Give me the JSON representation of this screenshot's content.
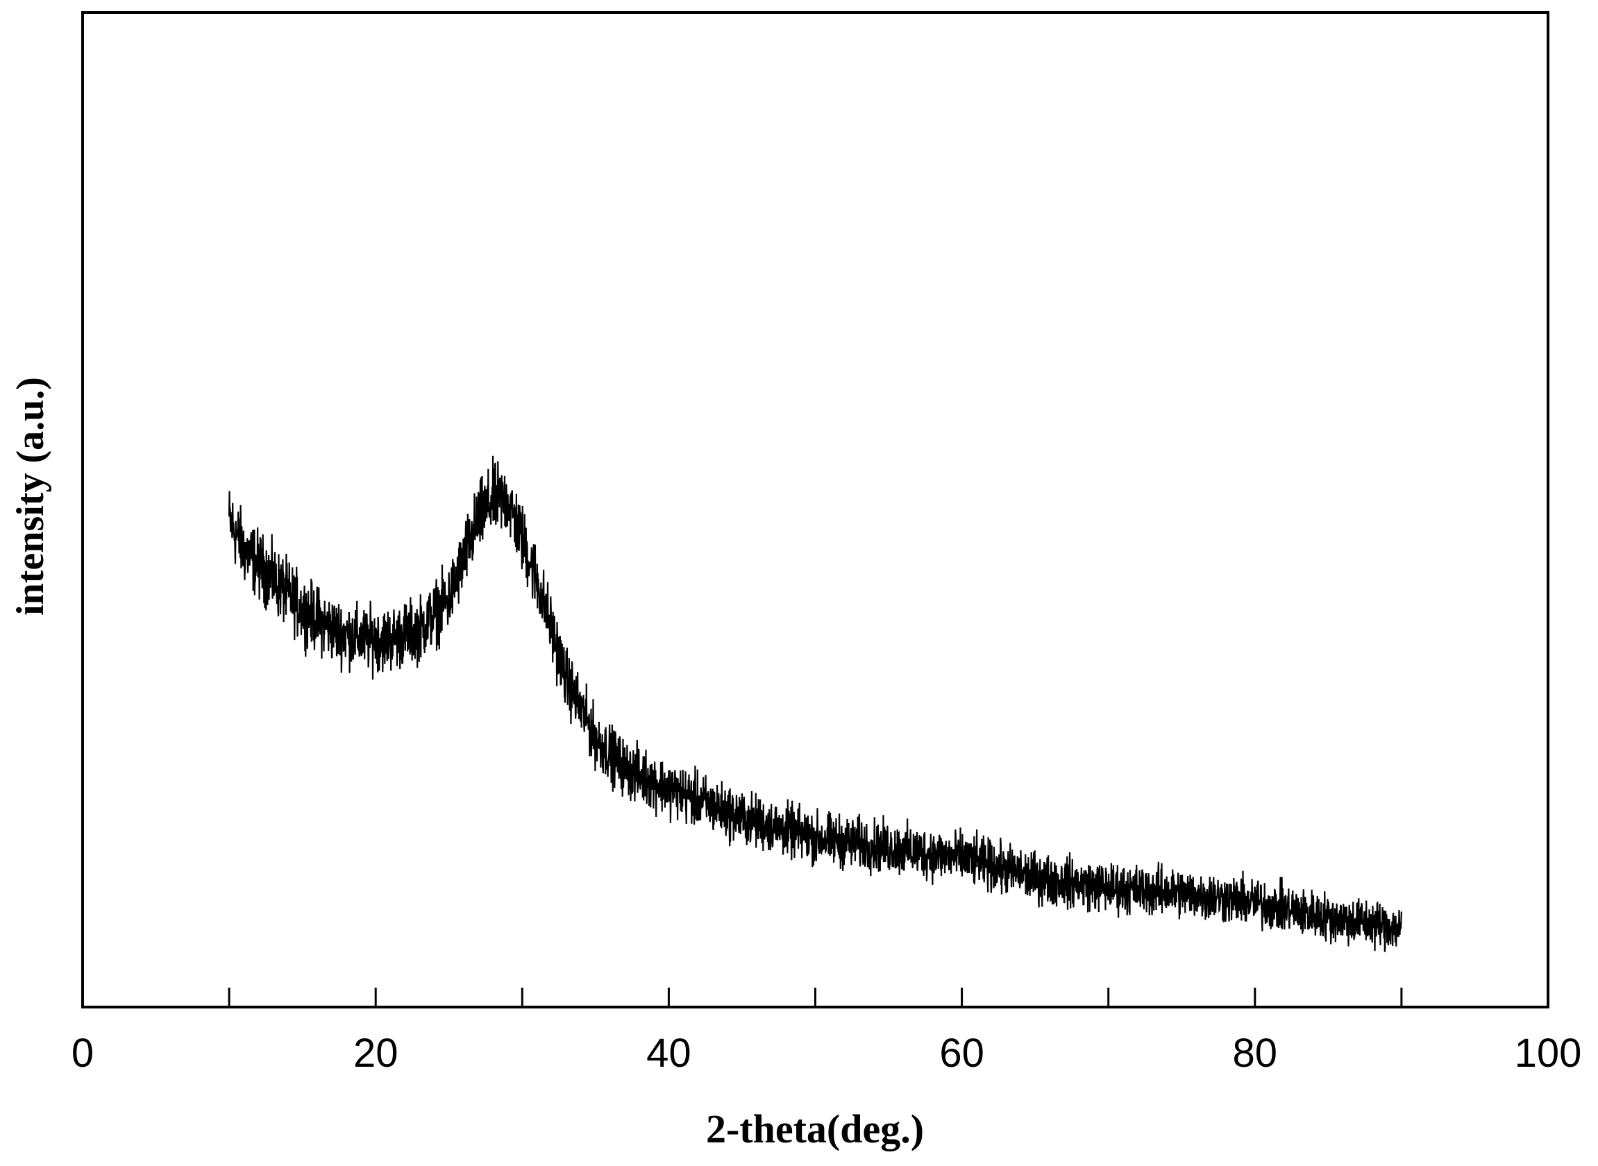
{
  "chart_data": {
    "type": "line",
    "xlabel": "2-theta(deg.)",
    "ylabel": "intensity (a.u.)",
    "xlim": [
      0,
      100
    ],
    "ylim": [
      0,
      100
    ],
    "x_ticks": [
      0,
      20,
      40,
      60,
      80,
      100
    ],
    "x_minor_ticks": [
      10,
      30,
      50,
      70,
      90
    ],
    "y_ticks_labeled": false,
    "grid": false,
    "legend": "none",
    "line_color": "#000000",
    "series": [
      {
        "x_range": [
          10,
          90
        ],
        "noise_amplitude": 3.5,
        "envelope": [
          {
            "x": 10,
            "y": 49
          },
          {
            "x": 11,
            "y": 46
          },
          {
            "x": 13,
            "y": 43
          },
          {
            "x": 15,
            "y": 40
          },
          {
            "x": 17,
            "y": 38
          },
          {
            "x": 19,
            "y": 37
          },
          {
            "x": 21,
            "y": 37
          },
          {
            "x": 23,
            "y": 38
          },
          {
            "x": 25,
            "y": 41
          },
          {
            "x": 26,
            "y": 45
          },
          {
            "x": 27,
            "y": 49
          },
          {
            "x": 28,
            "y": 51
          },
          {
            "x": 29,
            "y": 51
          },
          {
            "x": 30,
            "y": 47
          },
          {
            "x": 31,
            "y": 43
          },
          {
            "x": 32,
            "y": 38
          },
          {
            "x": 33,
            "y": 33
          },
          {
            "x": 34,
            "y": 30
          },
          {
            "x": 35,
            "y": 27
          },
          {
            "x": 37,
            "y": 24
          },
          {
            "x": 40,
            "y": 22
          },
          {
            "x": 45,
            "y": 19
          },
          {
            "x": 50,
            "y": 17
          },
          {
            "x": 55,
            "y": 16
          },
          {
            "x": 60,
            "y": 15
          },
          {
            "x": 65,
            "y": 13
          },
          {
            "x": 70,
            "y": 12
          },
          {
            "x": 75,
            "y": 11.5
          },
          {
            "x": 80,
            "y": 10.5
          },
          {
            "x": 85,
            "y": 9
          },
          {
            "x": 90,
            "y": 8
          }
        ]
      }
    ]
  }
}
